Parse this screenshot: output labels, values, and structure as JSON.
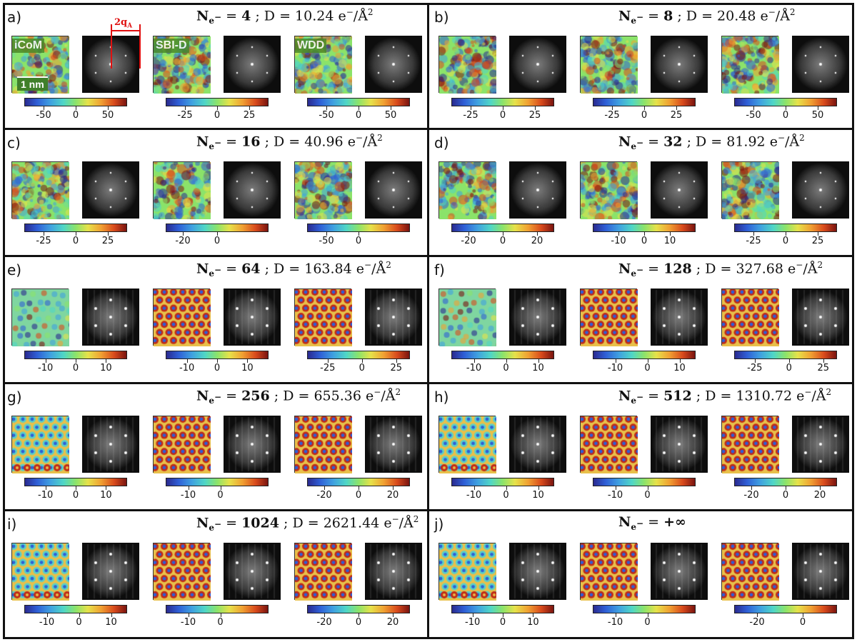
{
  "method_labels": [
    "iCoM",
    "SBI-D",
    "WDD"
  ],
  "scale_bar_label": "1 nm",
  "fft_annotation": "2q",
  "fft_annotation_sub": "A",
  "title_parts": {
    "n_symbol": "N",
    "n_sub": "e",
    "n_sup": "−",
    "dose_symbol": "D",
    "dose_unit": "e",
    "dose_unit_sup": "−",
    "dose_per": "/Å",
    "dose_exp": "2"
  },
  "panels": [
    {
      "label": "a)",
      "n": "4",
      "dose": "10.24",
      "style": "noise",
      "colorbars": [
        {
          "min": -80,
          "max": 80,
          "ticks": [
            -50,
            0,
            50
          ]
        },
        {
          "min": -40,
          "max": 40,
          "ticks": [
            -25,
            0,
            25
          ]
        },
        {
          "min": -80,
          "max": 80,
          "ticks": [
            -50,
            0,
            50
          ]
        }
      ]
    },
    {
      "label": "b)",
      "n": "8",
      "dose": "20.48",
      "style": "noise",
      "colorbars": [
        {
          "min": -40,
          "max": 40,
          "ticks": [
            -25,
            0,
            25
          ]
        },
        {
          "min": -40,
          "max": 40,
          "ticks": [
            -25,
            0,
            25
          ]
        },
        {
          "min": -80,
          "max": 80,
          "ticks": [
            -50,
            0,
            50
          ]
        }
      ]
    },
    {
      "label": "c)",
      "n": "16",
      "dose": "40.96",
      "style": "noise",
      "colorbars": [
        {
          "min": -40,
          "max": 40,
          "ticks": [
            -25,
            0,
            25
          ]
        },
        {
          "min": -30,
          "max": 30,
          "ticks": [
            -20,
            0
          ]
        },
        {
          "min": -80,
          "max": 80,
          "ticks": [
            -50,
            0
          ]
        }
      ]
    },
    {
      "label": "d)",
      "n": "32",
      "dose": "81.92",
      "style": "noise",
      "colorbars": [
        {
          "min": -30,
          "max": 30,
          "ticks": [
            -20,
            0,
            20
          ]
        },
        {
          "min": -20,
          "max": 20,
          "ticks": [
            -10,
            0,
            10
          ]
        },
        {
          "min": -40,
          "max": 40,
          "ticks": [
            -25,
            0,
            25
          ]
        }
      ]
    },
    {
      "label": "e)",
      "n": "64",
      "dose": "163.84",
      "style": "mixed",
      "colorbars": [
        {
          "min": -17,
          "max": 17,
          "ticks": [
            -10,
            0,
            10
          ]
        },
        {
          "min": -17,
          "max": 17,
          "ticks": [
            -10,
            0,
            10
          ]
        },
        {
          "min": -40,
          "max": 35,
          "ticks": [
            -25,
            0,
            25
          ]
        }
      ]
    },
    {
      "label": "f)",
      "n": "128",
      "dose": "327.68",
      "style": "mixed",
      "colorbars": [
        {
          "min": -17,
          "max": 15,
          "ticks": [
            -10,
            0,
            10
          ]
        },
        {
          "min": -17,
          "max": 15,
          "ticks": [
            -10,
            0,
            10
          ]
        },
        {
          "min": -40,
          "max": 35,
          "ticks": [
            -25,
            0,
            25
          ]
        }
      ]
    },
    {
      "label": "g)",
      "n": "256",
      "dose": "655.36",
      "style": "lattice",
      "colorbars": [
        {
          "min": -17,
          "max": 17,
          "ticks": [
            -10,
            0,
            10
          ]
        },
        {
          "min": -17,
          "max": 15,
          "ticks": [
            -10,
            0
          ]
        },
        {
          "min": -30,
          "max": 30,
          "ticks": [
            -20,
            0,
            20
          ]
        }
      ]
    },
    {
      "label": "h)",
      "n": "512",
      "dose": "1310.72",
      "style": "lattice",
      "colorbars": [
        {
          "min": -17,
          "max": 15,
          "ticks": [
            -10,
            0,
            10
          ]
        },
        {
          "min": -17,
          "max": 15,
          "ticks": [
            -10,
            0
          ]
        },
        {
          "min": -30,
          "max": 30,
          "ticks": [
            -20,
            0,
            20
          ]
        }
      ]
    },
    {
      "label": "i)",
      "n": "1024",
      "dose": "2621.44",
      "style": "lattice",
      "colorbars": [
        {
          "min": -17,
          "max": 15,
          "ticks": [
            -10,
            0,
            10
          ]
        },
        {
          "min": -17,
          "max": 15,
          "ticks": [
            -10,
            0
          ]
        },
        {
          "min": -30,
          "max": 30,
          "ticks": [
            -20,
            0,
            20
          ]
        }
      ]
    },
    {
      "label": "j)",
      "n": "+∞",
      "dose": "",
      "style": "lattice",
      "colorbars": [
        {
          "min": -17,
          "max": 17,
          "ticks": [
            -10,
            0,
            10
          ]
        },
        {
          "min": -17,
          "max": 15,
          "ticks": [
            -10,
            0
          ]
        },
        {
          "min": -30,
          "max": 15,
          "ticks": [
            -20,
            0
          ]
        }
      ]
    }
  ]
}
